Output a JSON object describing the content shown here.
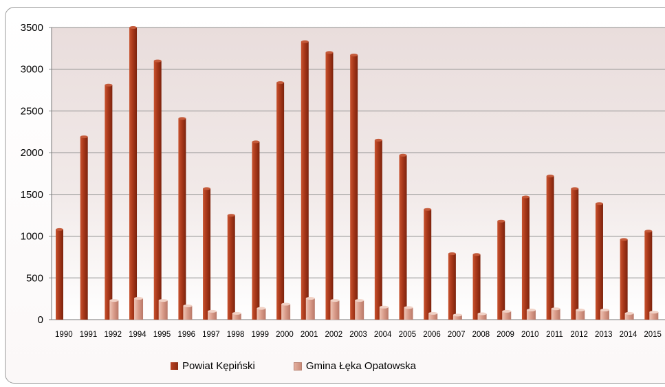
{
  "chart_data": {
    "type": "bar",
    "title": "",
    "xlabel": "",
    "ylabel": "",
    "ylim": [
      0,
      3500
    ],
    "yticks": [
      0,
      500,
      1000,
      1500,
      2000,
      2500,
      3000,
      3500
    ],
    "grid": true,
    "legend_position": "bottom",
    "categories": [
      "1990",
      "1991",
      "1992",
      "1994",
      "1995",
      "1996",
      "1997",
      "1998",
      "1999",
      "2000",
      "2001",
      "2002",
      "2003",
      "2004",
      "2005",
      "2006",
      "2007",
      "2008",
      "2009",
      "2010",
      "2011",
      "2012",
      "2013",
      "2014",
      "2015"
    ],
    "series": [
      {
        "name": "Powiat Kępiński",
        "color": "#a8381a",
        "values": [
          1080,
          2190,
          2810,
          3500,
          3100,
          2410,
          1570,
          1250,
          2130,
          2840,
          3330,
          3200,
          3170,
          2150,
          1970,
          1320,
          790,
          780,
          1180,
          1470,
          1720,
          1570,
          1390,
          960,
          1060
        ]
      },
      {
        "name": "Gmina Łęka Opatowska",
        "color": "#d89a88",
        "values": [
          0,
          0,
          230,
          255,
          230,
          165,
          100,
          75,
          135,
          185,
          255,
          230,
          230,
          150,
          145,
          75,
          55,
          70,
          100,
          115,
          130,
          115,
          115,
          75,
          90
        ]
      }
    ]
  }
}
